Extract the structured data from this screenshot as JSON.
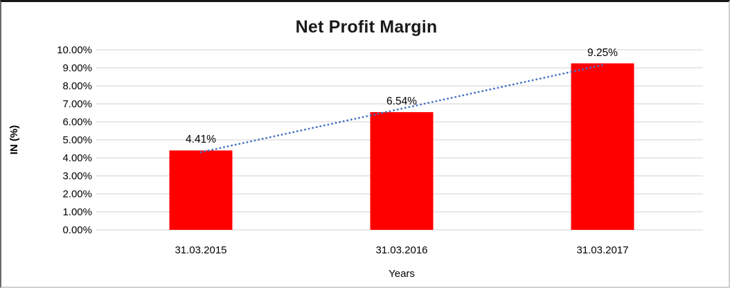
{
  "chart_data": {
    "type": "bar",
    "title": "Net Profit Margin",
    "categories": [
      "31.03.2015",
      "31.03.2016",
      "31.03.2017"
    ],
    "values": [
      4.41,
      6.54,
      9.25
    ],
    "data_labels": [
      "4.41%",
      "6.54%",
      "9.25%"
    ],
    "xlabel": "Years",
    "ylabel": "IN (%)",
    "ylim": [
      0,
      10
    ],
    "ytick_labels": [
      "0.00%",
      "1.00%",
      "2.00%",
      "3.00%",
      "4.00%",
      "5.00%",
      "6.00%",
      "7.00%",
      "8.00%",
      "9.00%",
      "10.00%"
    ],
    "grid": true,
    "legend": "none",
    "trendline": {
      "type": "linear",
      "style": "dotted"
    },
    "colors": {
      "bar": "#ff0000",
      "gridline": "#d9d9d9",
      "trendline": "#4472c4",
      "text": "#000000",
      "title": "#1a1a1a"
    }
  }
}
